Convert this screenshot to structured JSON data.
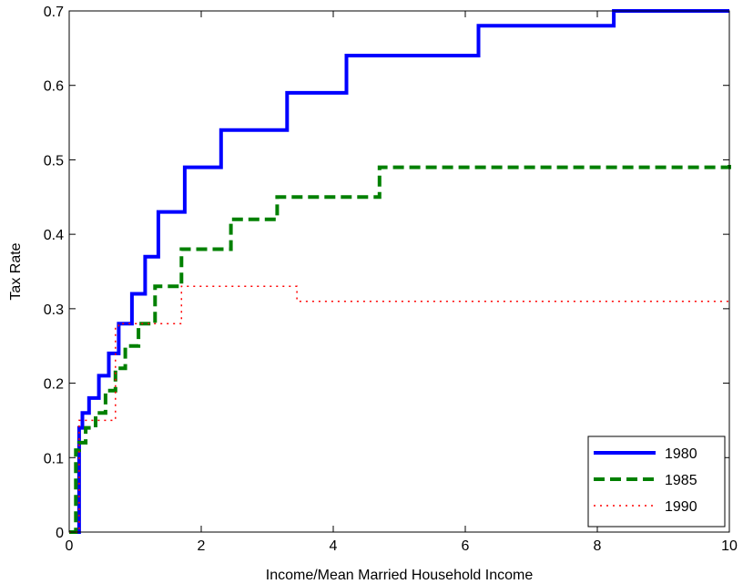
{
  "chart_data": {
    "type": "line",
    "step": true,
    "xlabel": "Income/Mean Married Household Income",
    "ylabel": "Tax Rate",
    "xlim": [
      0,
      10
    ],
    "ylim": [
      0,
      0.7
    ],
    "xticks": [
      0,
      2,
      4,
      6,
      8,
      10
    ],
    "yticks": [
      0,
      0.1,
      0.2,
      0.3,
      0.4,
      0.5,
      0.6,
      0.7
    ],
    "xtick_labels": [
      "0",
      "2",
      "4",
      "6",
      "8",
      "10"
    ],
    "ytick_labels": [
      "0",
      "0.1",
      "0.2",
      "0.3",
      "0.4",
      "0.5",
      "0.6",
      "0.7"
    ],
    "grid": false,
    "legend_position": "bottom-right",
    "series": [
      {
        "name": "1980",
        "color": "#0000ff",
        "style": "solid",
        "x": [
          0.0,
          0.15,
          0.2,
          0.3,
          0.45,
          0.6,
          0.75,
          0.95,
          1.15,
          1.35,
          1.75,
          2.3,
          3.3,
          4.2,
          6.2,
          8.25,
          10.0
        ],
        "y": [
          0.0,
          0.14,
          0.16,
          0.18,
          0.21,
          0.24,
          0.28,
          0.32,
          0.37,
          0.43,
          0.49,
          0.54,
          0.59,
          0.64,
          0.68,
          0.7,
          0.7
        ]
      },
      {
        "name": "1985",
        "color": "#008000",
        "style": "dashed",
        "x": [
          0.0,
          0.1,
          0.15,
          0.25,
          0.4,
          0.55,
          0.7,
          0.85,
          1.05,
          1.3,
          1.7,
          2.45,
          3.15,
          4.7,
          10.0
        ],
        "y": [
          0.0,
          0.11,
          0.12,
          0.14,
          0.16,
          0.19,
          0.22,
          0.25,
          0.28,
          0.33,
          0.38,
          0.42,
          0.45,
          0.49,
          0.5
        ]
      },
      {
        "name": "1990",
        "color": "#ff0000",
        "style": "dotted",
        "x": [
          0.0,
          0.15,
          0.3,
          0.7,
          0.75,
          1.65,
          1.7,
          3.45,
          10.0
        ],
        "y": [
          0.0,
          0.15,
          0.15,
          0.275,
          0.28,
          0.28,
          0.33,
          0.31,
          0.31
        ]
      }
    ]
  }
}
